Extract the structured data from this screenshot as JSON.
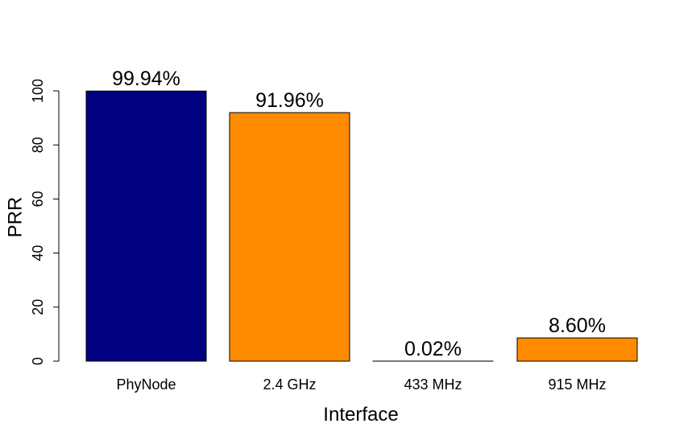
{
  "chart_data": {
    "type": "bar",
    "title": "",
    "xlabel": "Interface",
    "ylabel": "PRR",
    "ylim": [
      0,
      100
    ],
    "yticks": [
      0,
      20,
      40,
      60,
      80,
      100
    ],
    "grid": false,
    "legend": "none",
    "categories": [
      "PhyNode",
      "2.4 GHz",
      "433 MHz",
      "915 MHz"
    ],
    "values": [
      99.94,
      91.96,
      0.02,
      8.6
    ],
    "value_labels": [
      "99.94%",
      "91.96%",
      "0.02%",
      "8.60%"
    ],
    "colors": [
      "#000080",
      "#FF8C00",
      "#FF8C00",
      "#FF8C00"
    ]
  }
}
